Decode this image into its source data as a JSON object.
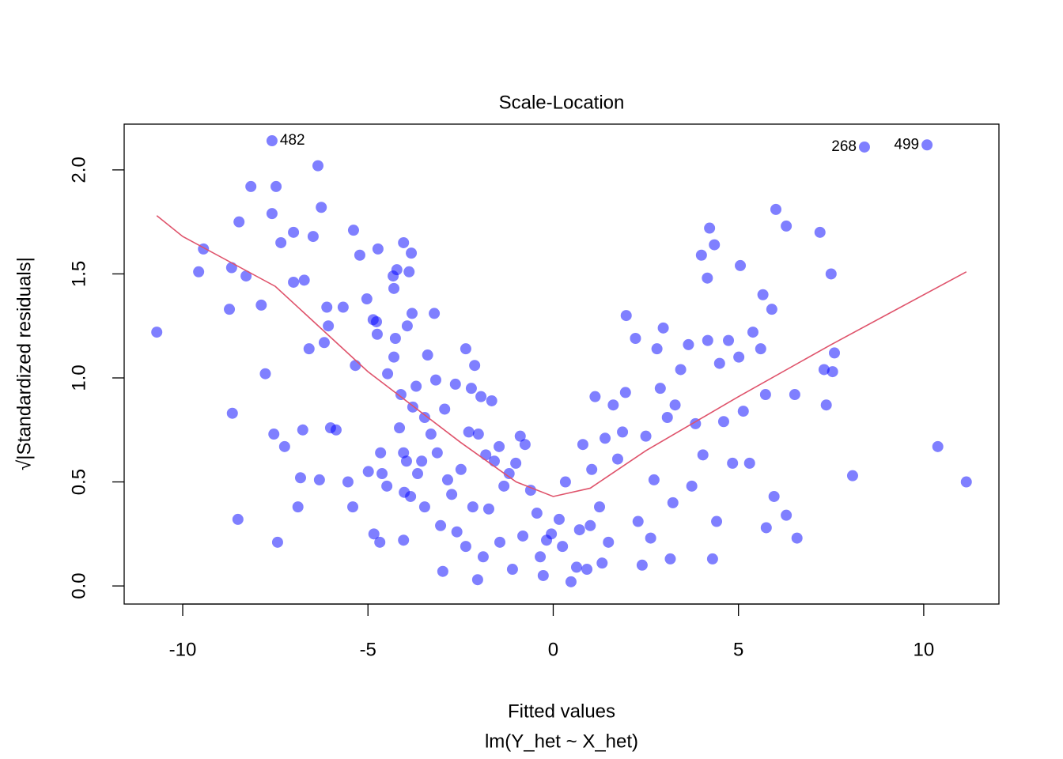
{
  "chart_data": {
    "type": "scatter",
    "title": "Scale-Location",
    "xlabel": "Fitted values",
    "subtitle": "lm(Y_het ~ X_het)",
    "ylabel": "√|Standardized residuals|",
    "xlim": [
      -11.58,
      12.03
    ],
    "ylim": [
      -0.087,
      2.22
    ],
    "xticks": [
      -10,
      -5,
      0,
      5,
      10
    ],
    "yticks": [
      {
        "value": 0,
        "label": "0.0"
      },
      0.5,
      {
        "value": 1,
        "label": "1.0"
      },
      1.5,
      {
        "value": 2,
        "label": "2.0"
      }
    ],
    "points": {
      "color": "rgba(0,0,255,0.5)",
      "x": [
        -10.7,
        -9.57,
        -9.44,
        -8.68,
        -8.74,
        -8.66,
        -8.51,
        -8.48,
        -8.29,
        -8.16,
        -7.88,
        -7.77,
        -7.59,
        -7.54,
        -7.48,
        -7.44,
        -7.35,
        -7.25,
        -7.01,
        -7.01,
        -6.89,
        -6.82,
        -6.76,
        -6.72,
        -6.59,
        -6.48,
        -6.35,
        -6.31,
        -6.26,
        -6.18,
        -6.11,
        -6.07,
        -6.01,
        -5.86,
        -5.67,
        -5.54,
        -5.41,
        -5.39,
        -5.34,
        -5.22,
        -5.03,
        -4.99,
        -4.86,
        -4.84,
        -4.77,
        -4.75,
        -4.73,
        -4.68,
        -4.66,
        -4.62,
        -4.49,
        -4.47,
        -4.32,
        -4.3,
        -4.3,
        -4.26,
        -4.22,
        -4.15,
        -4.11,
        -4.04,
        -4.04,
        -4.04,
        -4.02,
        -3.96,
        -3.94,
        -3.89,
        -3.85,
        -3.83,
        -3.81,
        -3.79,
        -3.7,
        -3.66,
        -3.55,
        -3.47,
        -3.47,
        -3.39,
        -3.3,
        -3.21,
        -3.17,
        -3.13,
        -3.04,
        -2.98,
        -2.93,
        -2.85,
        -2.74,
        -2.64,
        -2.6,
        -2.49,
        -2.36,
        -2.36,
        -2.28,
        -2.21,
        -2.17,
        -2.12,
        -2.04,
        -2.02,
        -1.95,
        -1.89,
        -1.82,
        -1.74,
        -1.66,
        -1.59,
        -1.46,
        -1.44,
        -1.33,
        -1.19,
        -1.1,
        -1.01,
        -0.89,
        -0.82,
        -0.76,
        -0.61,
        -0.44,
        -0.35,
        -0.27,
        -0.18,
        -0.05,
        0.16,
        0.25,
        0.33,
        0.48,
        0.63,
        0.71,
        0.8,
        0.91,
        1.0,
        1.04,
        1.13,
        1.25,
        1.32,
        1.4,
        1.49,
        1.62,
        1.74,
        1.87,
        1.95,
        1.97,
        2.22,
        2.29,
        2.4,
        2.5,
        2.63,
        2.72,
        2.8,
        2.89,
        2.97,
        3.08,
        3.16,
        3.23,
        3.29,
        3.44,
        3.65,
        3.74,
        3.84,
        4.0,
        4.04,
        4.16,
        4.17,
        4.22,
        4.3,
        4.35,
        4.41,
        4.49,
        4.6,
        4.73,
        4.84,
        5.01,
        5.05,
        5.13,
        5.3,
        5.39,
        5.6,
        5.66,
        5.73,
        5.75,
        5.9,
        5.96,
        6.01,
        6.29,
        6.29,
        6.52,
        6.58,
        7.2,
        7.31,
        7.37,
        7.5,
        7.54,
        7.59,
        8.08,
        8.4,
        10.09,
        10.38,
        11.15,
        -7.59
      ],
      "y": [
        1.22,
        1.51,
        1.62,
        1.53,
        1.33,
        0.83,
        0.32,
        1.75,
        1.49,
        1.92,
        1.35,
        1.02,
        1.79,
        0.73,
        1.92,
        0.21,
        1.65,
        0.67,
        1.7,
        1.46,
        0.38,
        0.52,
        0.75,
        1.47,
        1.14,
        1.68,
        2.02,
        0.51,
        1.82,
        1.17,
        1.34,
        1.25,
        0.76,
        0.75,
        1.34,
        0.5,
        0.38,
        1.71,
        1.06,
        1.59,
        1.38,
        0.55,
        1.28,
        0.25,
        1.27,
        1.21,
        1.62,
        0.21,
        0.64,
        0.54,
        0.48,
        1.02,
        1.49,
        1.43,
        1.1,
        1.19,
        1.52,
        0.76,
        0.92,
        0.22,
        1.65,
        0.64,
        0.45,
        0.6,
        1.25,
        1.51,
        0.43,
        1.6,
        1.31,
        0.86,
        0.96,
        0.54,
        0.6,
        0.81,
        0.38,
        1.11,
        0.73,
        1.31,
        0.99,
        0.64,
        0.29,
        0.07,
        0.85,
        0.51,
        0.44,
        0.97,
        0.26,
        0.56,
        1.14,
        0.19,
        0.74,
        0.95,
        0.38,
        1.06,
        0.03,
        0.73,
        0.91,
        0.14,
        0.63,
        0.37,
        0.89,
        0.6,
        0.67,
        0.21,
        0.48,
        0.54,
        0.08,
        0.59,
        0.72,
        0.24,
        0.68,
        0.46,
        0.35,
        0.14,
        0.05,
        0.22,
        0.25,
        0.32,
        0.19,
        0.5,
        0.02,
        0.09,
        0.27,
        0.68,
        0.08,
        0.29,
        0.56,
        0.91,
        0.38,
        0.11,
        0.71,
        0.21,
        0.87,
        0.61,
        0.74,
        0.93,
        1.3,
        1.19,
        0.31,
        0.1,
        0.72,
        0.23,
        0.51,
        1.14,
        0.95,
        1.24,
        0.81,
        0.13,
        0.4,
        0.87,
        1.04,
        1.16,
        0.48,
        0.78,
        1.59,
        0.63,
        1.48,
        1.18,
        1.72,
        0.13,
        1.64,
        0.31,
        1.07,
        0.79,
        1.18,
        0.59,
        1.1,
        1.54,
        0.84,
        0.59,
        1.22,
        1.14,
        1.4,
        0.92,
        0.28,
        1.33,
        0.43,
        1.81,
        1.73,
        0.34,
        0.92,
        0.23,
        1.7,
        1.04,
        0.87,
        1.5,
        1.03,
        1.12,
        0.53,
        2.11,
        2.12,
        0.67,
        0.5,
        2.14
      ]
    },
    "smooth": {
      "color": "#df536b",
      "x": [
        -10.7,
        -10,
        -7.5,
        -5,
        -2.5,
        -1,
        0,
        1,
        2.5,
        5,
        7.5,
        11.15
      ],
      "y": [
        1.78,
        1.68,
        1.44,
        1.03,
        0.69,
        0.5,
        0.43,
        0.47,
        0.65,
        0.91,
        1.16,
        1.51
      ]
    },
    "annotations": [
      {
        "text": "482",
        "x": -7.59,
        "y": 2.14,
        "position": "right"
      },
      {
        "text": "268",
        "x": 8.4,
        "y": 2.11,
        "position": "left"
      },
      {
        "text": "499",
        "x": 10.09,
        "y": 2.12,
        "position": "left"
      }
    ]
  }
}
